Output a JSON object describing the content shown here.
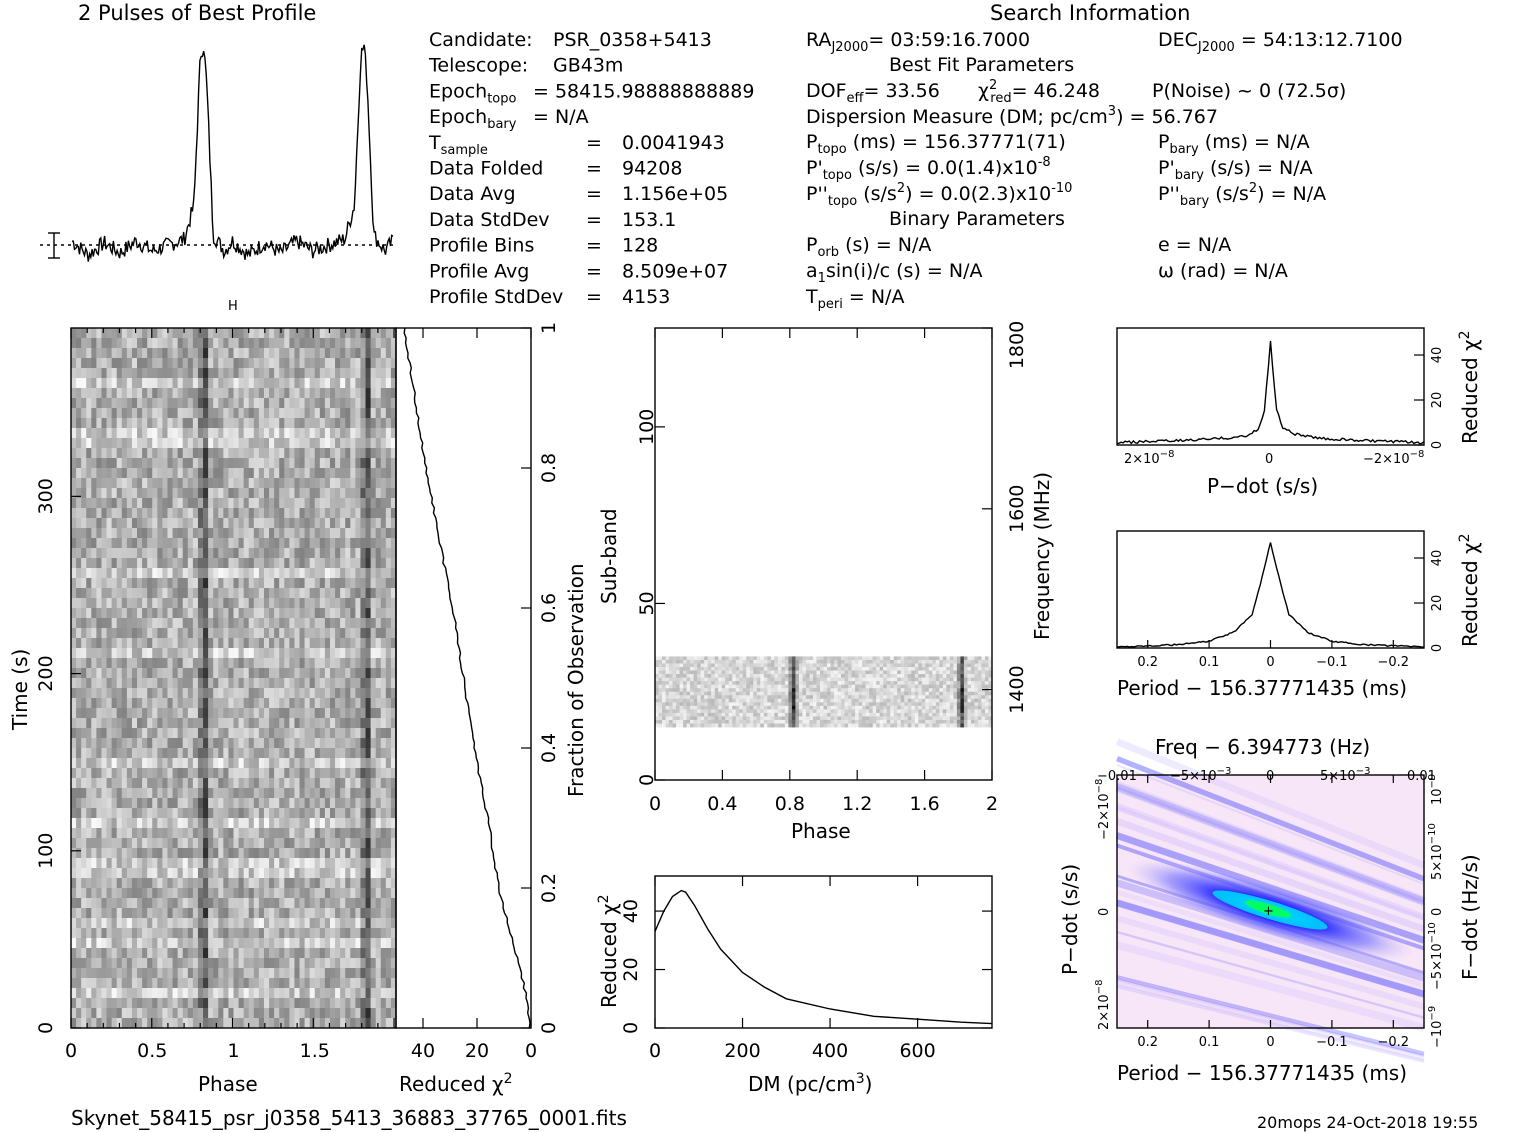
{
  "header": {
    "profile_title": "2 Pulses of Best Profile",
    "search_title": "Search Information"
  },
  "info_left": [
    {
      "label": "Candidate:",
      "value": "PSR_0358+5413"
    },
    {
      "label": "Telescope:",
      "value": "GB43m"
    },
    {
      "label": "Epoch",
      "sub": "topo",
      "value": "= 58415.98888888889"
    },
    {
      "label": "Epoch",
      "sub": "bary",
      "value": "= N/A"
    },
    {
      "label": "T",
      "sub": "sample",
      "eq": "=",
      "value": "0.0041943"
    },
    {
      "label": "Data Folded",
      "eq": "=",
      "value": "94208"
    },
    {
      "label": "Data Avg",
      "eq": "=",
      "value": "1.156e+05"
    },
    {
      "label": "Data StdDev",
      "eq": "=",
      "value": "153.1"
    },
    {
      "label": "Profile Bins",
      "eq": "=",
      "value": "128"
    },
    {
      "label": "Profile Avg",
      "eq": "=",
      "value": "8.509e+07"
    },
    {
      "label": "Profile StdDev",
      "eq": "=",
      "value": "4153"
    }
  ],
  "info_mid": {
    "ra": "= 03:59:16.7000",
    "best_fit_title": "Best Fit Parameters",
    "dof": "= 33.56",
    "chi": "= 46.248",
    "pnoise": "P(Noise) ~ 0   (72.5σ)",
    "dm": "Dispersion Measure (DM; pc/cm",
    "dm_val": ") = 56.767",
    "ptopo": "(ms) =  156.37771(71)",
    "pdtopo": "(s/s) = 0.0(1.4)x10",
    "pdtopo_exp": "-8",
    "pddtopo": "(s/s",
    "pddtopo_val": ") = 0.0(2.3)x10",
    "pddtopo_exp": "-10",
    "binary_title": "Binary Parameters",
    "porb": "(s) = N/A",
    "a1": "a",
    "a1_rest": "sin(i)/c (s) = N/A",
    "tperi": "= N/A"
  },
  "info_right": {
    "dec": "= 54:13:12.7100",
    "pbary": "(ms) = N/A",
    "pdbary": "(s/s) = N/A",
    "pddbary": "(s/s",
    "pddbary_val": ") = N/A",
    "ecc": "e = N/A",
    "omega": "ω (rad) = N/A"
  },
  "footer": {
    "filename": "Skynet_58415_psr_j0358_5413_36883_37765_0001.fits",
    "stamp": "20mops 24-Oct-2018 19:55"
  },
  "chart_data": [
    {
      "type": "line",
      "title": "2 Pulses of Best Profile",
      "x": [
        0.0,
        0.1,
        0.2,
        0.3,
        0.4,
        0.5,
        0.6,
        0.7,
        0.76,
        0.8,
        0.82,
        0.84,
        0.88,
        0.95,
        1.0,
        1.1,
        1.2,
        1.3,
        1.4,
        1.5,
        1.6,
        1.7,
        1.76,
        1.8,
        1.82,
        1.84,
        1.88,
        1.95,
        2.0
      ],
      "y": [
        0.02,
        -0.05,
        0.01,
        -0.04,
        0.02,
        -0.03,
        0.0,
        0.03,
        0.2,
        0.95,
        1.0,
        0.8,
        0.05,
        -0.03,
        0.02,
        -0.05,
        0.01,
        -0.04,
        0.02,
        -0.03,
        0.0,
        0.03,
        0.2,
        0.95,
        1.0,
        0.8,
        0.05,
        -0.03,
        0.02
      ]
    },
    {
      "type": "heatmap",
      "xlabel": "Phase",
      "ylabel": "Time (s)",
      "xticks": [
        "0",
        "0.5",
        "1",
        "1.5"
      ],
      "yticks": [
        "0",
        "100",
        "200",
        "300"
      ],
      "xlim": [
        0,
        2
      ],
      "ylim": [
        0,
        395
      ],
      "pulse_phases": [
        0.82,
        1.82
      ]
    },
    {
      "type": "line",
      "xlabel": "Reduced χ²",
      "ylabel": "Fraction of Observation",
      "xticks": [
        "40",
        "20",
        "0"
      ],
      "yticks": [
        "0",
        "0.2",
        "0.4",
        "0.6",
        "0.8",
        "1"
      ],
      "xlim": [
        50,
        0
      ],
      "ylim": [
        0,
        1
      ],
      "fraction": [
        0.0,
        0.05,
        0.1,
        0.2,
        0.3,
        0.4,
        0.5,
        0.6,
        0.7,
        0.8,
        0.9,
        0.95,
        1.0
      ],
      "chi2": [
        0.5,
        2,
        5,
        12,
        16,
        21,
        25,
        29,
        34,
        39,
        43,
        45,
        47
      ]
    },
    {
      "type": "heatmap",
      "xlabel": "Phase",
      "ylabel": "Sub-band",
      "ylabel2": "Frequency (MHz)",
      "xticks": [
        "0",
        "0.4",
        "0.8",
        "1.2",
        "1.6",
        "2"
      ],
      "yticks": [
        "0",
        "50",
        "100"
      ],
      "y2ticks": [
        "1400",
        "1600",
        "1800"
      ],
      "xlim": [
        0,
        2
      ],
      "ylim": [
        0,
        128
      ],
      "filled_subbands": [
        15,
        35
      ],
      "pulse_phases": [
        0.82,
        1.82
      ]
    },
    {
      "type": "line",
      "xlabel": "DM (pc/cm³)",
      "ylabel": "Reduced χ²",
      "xticks": [
        "0",
        "200",
        "400",
        "600"
      ],
      "yticks": [
        "0",
        "20",
        "40"
      ],
      "xlim": [
        0,
        770
      ],
      "ylim": [
        0,
        52
      ],
      "x": [
        0,
        20,
        40,
        60,
        70,
        90,
        120,
        150,
        200,
        250,
        300,
        400,
        500,
        600,
        700,
        770
      ],
      "y": [
        33,
        40,
        45,
        47,
        46.5,
        42,
        34,
        27,
        19,
        14,
        10,
        6.5,
        4,
        3,
        2,
        1.5
      ]
    },
    {
      "type": "line",
      "xlabel": "P−dot (s/s)",
      "ylabel": "Reduced χ²",
      "xticks": [
        "2×10⁻⁸",
        "0",
        "−2×10⁻⁸"
      ],
      "yticks": [
        "0",
        "20",
        "40"
      ],
      "xlim": [
        2.6e-08,
        -2.6e-08
      ],
      "ylim": [
        0,
        52
      ],
      "x": [
        2.6e-08,
        1.5e-08,
        8e-09,
        4e-09,
        2e-09,
        1e-09,
        0,
        -1e-09,
        -2e-09,
        -4e-09,
        -8e-09,
        -1.5e-08,
        -2.6e-08
      ],
      "y": [
        1,
        2,
        3,
        4,
        7,
        16,
        46,
        16,
        8,
        5,
        3,
        2,
        1
      ]
    },
    {
      "type": "line",
      "xlabel": "Period − 156.37771435 (ms)",
      "ylabel": "Reduced χ²",
      "xticks": [
        "0.2",
        "0.1",
        "0",
        "−0.1",
        "−0.2"
      ],
      "yticks": [
        "0",
        "20",
        "40"
      ],
      "xlim": [
        0.25,
        -0.25
      ],
      "ylim": [
        0,
        52
      ],
      "x": [
        0.25,
        0.15,
        0.1,
        0.06,
        0.03,
        0.015,
        0,
        -0.015,
        -0.03,
        -0.06,
        -0.1,
        -0.15,
        -0.25
      ],
      "y": [
        0.5,
        1.5,
        3,
        7,
        15,
        30,
        47,
        30,
        15,
        7,
        3,
        1.5,
        0.5
      ]
    },
    {
      "type": "heatmap",
      "title": "Freq − 6.394773 (Hz)",
      "xlabel": "Period − 156.37771435 (ms)",
      "ylabel": "P−dot (s/s)",
      "ylabel2": "F−dot (Hz/s)",
      "xticks": [
        "0.2",
        "0.1",
        "0",
        "−0.1",
        "−0.2"
      ],
      "x2ticks": [
        "−0.01",
        "−5×10⁻³",
        "0",
        "5×10⁻³",
        "0.01"
      ],
      "yticks": [
        "−2×10⁻⁸",
        "0",
        "2×10⁻⁸"
      ],
      "y2ticks": [
        "10⁻⁹",
        "5×10⁻¹⁰",
        "0",
        "−5×10⁻¹⁰",
        "−10⁻⁹"
      ],
      "colors": [
        "#ffe8ff",
        "#c8b8ff",
        "#3030ff",
        "#00d0ff",
        "#00ff60"
      ]
    }
  ]
}
